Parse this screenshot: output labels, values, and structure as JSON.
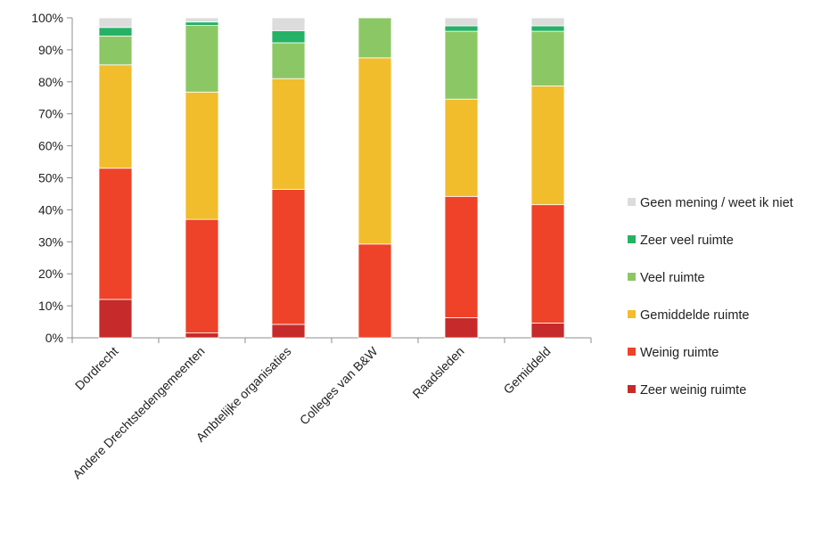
{
  "chart_data": {
    "type": "bar",
    "stacked": true,
    "categories": [
      "Dordrecht",
      "Andere Drechtstedengemeenten",
      "Ambtelijke organisaties",
      "Colleges van B&W",
      "Raadsleden",
      "Gemiddeld"
    ],
    "series": [
      {
        "name": "Zeer weinig ruimte",
        "color": "#c62a2a",
        "values": [
          12,
          1.5,
          4.2,
          0,
          6.3,
          4.6
        ]
      },
      {
        "name": "Weinig ruimte",
        "color": "#ee4229",
        "values": [
          41,
          35.5,
          42.2,
          29.3,
          37.9,
          37
        ]
      },
      {
        "name": "Gemiddelde ruimte",
        "color": "#f2bd2c",
        "values": [
          32.3,
          39.8,
          34.6,
          58.2,
          30.4,
          37.1
        ]
      },
      {
        "name": "Veel ruimte",
        "color": "#8bc865",
        "values": [
          9,
          20.8,
          11.2,
          12.5,
          21.2,
          17.1
        ]
      },
      {
        "name": "Zeer veel ruimte",
        "color": "#25b266",
        "values": [
          2.7,
          1.1,
          3.8,
          0,
          1.7,
          1.7
        ]
      },
      {
        "name": "Geen mening / weet ik niet",
        "color": "#dcdcdc",
        "values": [
          3,
          1.3,
          4,
          0,
          2.5,
          2.5
        ]
      }
    ],
    "ylim": [
      0,
      100
    ],
    "yticks": [
      "0%",
      "10%",
      "20%",
      "30%",
      "40%",
      "50%",
      "60%",
      "70%",
      "80%",
      "90%",
      "100%"
    ],
    "legend_order": [
      "Geen mening / weet ik niet",
      "Zeer veel ruimte",
      "Veel ruimte",
      "Gemiddelde ruimte",
      "Weinig ruimte",
      "Zeer weinig ruimte"
    ],
    "legend_position": "right",
    "grid": false
  }
}
